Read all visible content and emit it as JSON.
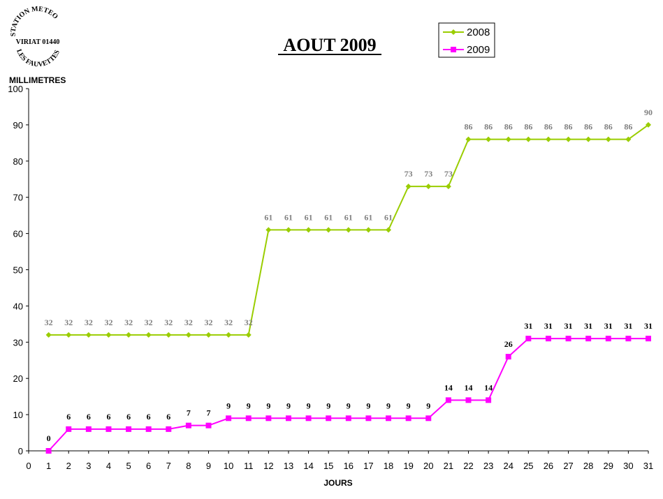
{
  "stamp": {
    "top_text": "STATION METEO",
    "middle_text": "VIRIAT 01440",
    "bottom_text": "LES FAUVETTES"
  },
  "colors": {
    "series_2008": "#9acd00",
    "series_2008_label": "#808080",
    "series_2009": "#ff00ff",
    "series_2009_label": "#000000"
  },
  "chart_data": {
    "type": "line",
    "title": "AOUT 2009",
    "ylabel": "MILLIMETRES",
    "xlabel": "JOURS",
    "ylim": [
      0,
      100
    ],
    "xlim": [
      0,
      31
    ],
    "yticks": [
      0,
      10,
      20,
      30,
      40,
      50,
      60,
      70,
      80,
      90,
      100
    ],
    "xticks": [
      0,
      1,
      2,
      3,
      4,
      5,
      6,
      7,
      8,
      9,
      10,
      11,
      12,
      13,
      14,
      15,
      16,
      17,
      18,
      19,
      20,
      21,
      22,
      23,
      24,
      25,
      26,
      27,
      28,
      29,
      30,
      31
    ],
    "grid": false,
    "legend_position": "top-right",
    "x": [
      1,
      2,
      3,
      4,
      5,
      6,
      7,
      8,
      9,
      10,
      11,
      12,
      13,
      14,
      15,
      16,
      17,
      18,
      19,
      20,
      21,
      22,
      23,
      24,
      25,
      26,
      27,
      28,
      29,
      30,
      31
    ],
    "series": [
      {
        "name": "2008",
        "marker": "diamond",
        "values": [
          32,
          32,
          32,
          32,
          32,
          32,
          32,
          32,
          32,
          32,
          32,
          61,
          61,
          61,
          61,
          61,
          61,
          61,
          73,
          73,
          73,
          86,
          86,
          86,
          86,
          86,
          86,
          86,
          86,
          86,
          90
        ]
      },
      {
        "name": "2009",
        "marker": "square",
        "values": [
          0,
          6,
          6,
          6,
          6,
          6,
          6,
          7,
          7,
          9,
          9,
          9,
          9,
          9,
          9,
          9,
          9,
          9,
          9,
          9,
          14,
          14,
          14,
          26,
          31,
          31,
          31,
          31,
          31,
          31,
          31
        ]
      }
    ]
  }
}
